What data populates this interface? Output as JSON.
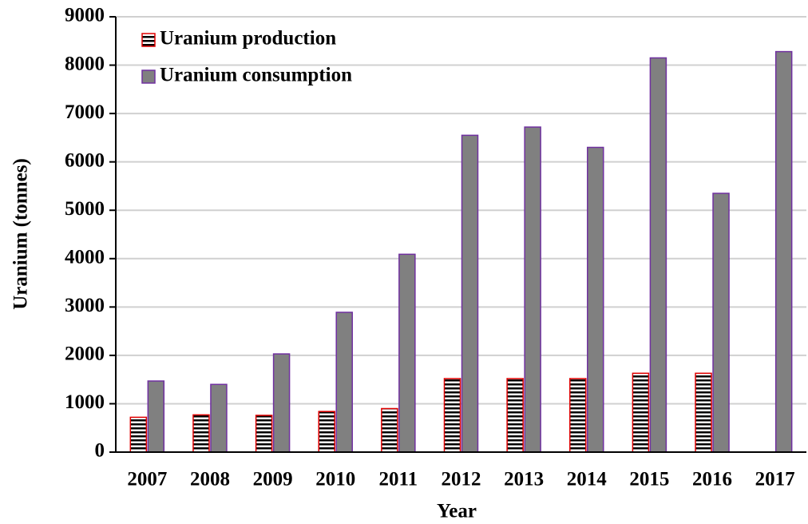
{
  "chart_data": {
    "type": "bar",
    "x_label": "Year",
    "y_label": "Uranium (tonnes)",
    "categories": [
      "2007",
      "2008",
      "2009",
      "2010",
      "2011",
      "2012",
      "2013",
      "2014",
      "2015",
      "2016",
      "2017"
    ],
    "series": [
      {
        "name": "Uranium production",
        "color": "#e00000",
        "values": [
          720,
          770,
          760,
          840,
          900,
          1520,
          1520,
          1520,
          1630,
          1630,
          null
        ]
      },
      {
        "name": "Uranium consumption",
        "color": "#808080",
        "values": [
          1470,
          1400,
          2030,
          2890,
          4090,
          6550,
          6720,
          6300,
          8150,
          5350,
          8280
        ]
      }
    ],
    "ylim": [
      0,
      9000
    ],
    "yticks": [
      0,
      1000,
      2000,
      3000,
      4000,
      5000,
      6000,
      7000,
      8000,
      9000
    ],
    "grid": true,
    "legend": "upper left"
  }
}
